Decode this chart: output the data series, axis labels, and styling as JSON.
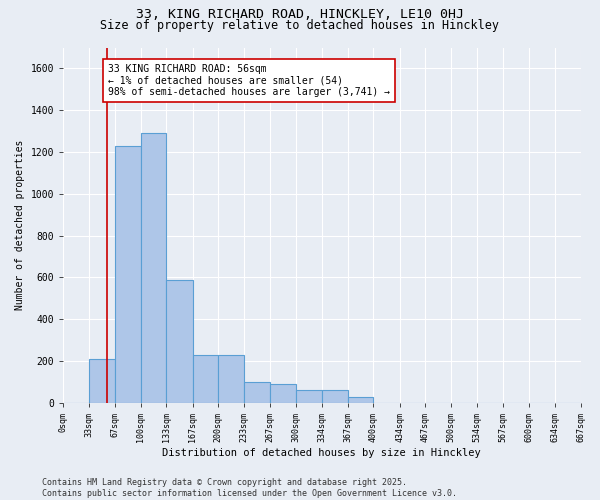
{
  "title_line1": "33, KING RICHARD ROAD, HINCKLEY, LE10 0HJ",
  "title_line2": "Size of property relative to detached houses in Hinckley",
  "xlabel": "Distribution of detached houses by size in Hinckley",
  "ylabel": "Number of detached properties",
  "bin_edges": [
    0,
    33,
    67,
    100,
    133,
    167,
    200,
    233,
    267,
    300,
    334,
    367,
    400,
    434,
    467,
    500,
    534,
    567,
    600,
    634,
    667
  ],
  "bar_heights": [
    0,
    210,
    1230,
    1290,
    590,
    230,
    230,
    100,
    90,
    60,
    60,
    30,
    0,
    0,
    0,
    0,
    0,
    0,
    0,
    0
  ],
  "bar_color": "#aec6e8",
  "bar_edge_color": "#5a9fd4",
  "bar_edge_width": 0.8,
  "vline_x": 56,
  "vline_color": "#cc0000",
  "annotation_text": "33 KING RICHARD ROAD: 56sqm\n← 1% of detached houses are smaller (54)\n98% of semi-detached houses are larger (3,741) →",
  "annotation_box_color": "#ffffff",
  "annotation_box_edge_color": "#cc0000",
  "annotation_fontsize": 7,
  "ylim": [
    0,
    1700
  ],
  "yticks": [
    0,
    200,
    400,
    600,
    800,
    1000,
    1200,
    1400,
    1600
  ],
  "bg_color": "#e8edf4",
  "grid_color": "#ffffff",
  "footer_line1": "Contains HM Land Registry data © Crown copyright and database right 2025.",
  "footer_line2": "Contains public sector information licensed under the Open Government Licence v3.0.",
  "footer_fontsize": 6,
  "title_fontsize1": 9.5,
  "title_fontsize2": 8.5,
  "tick_labels": [
    "0sqm",
    "33sqm",
    "67sqm",
    "100sqm",
    "133sqm",
    "167sqm",
    "200sqm",
    "233sqm",
    "267sqm",
    "300sqm",
    "334sqm",
    "367sqm",
    "400sqm",
    "434sqm",
    "467sqm",
    "500sqm",
    "534sqm",
    "567sqm",
    "600sqm",
    "634sqm",
    "667sqm"
  ]
}
